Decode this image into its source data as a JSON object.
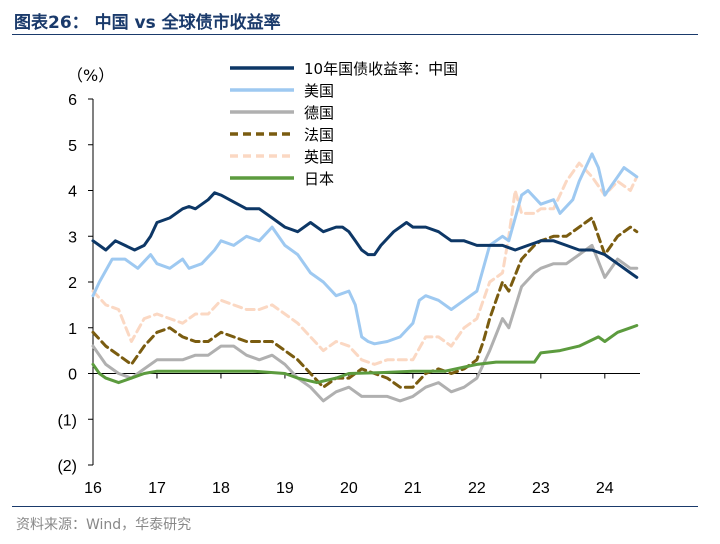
{
  "header": {
    "title": "图表26： 中国 vs 全球债市收益率"
  },
  "footer": {
    "source": "资料来源：Wind，华泰研究"
  },
  "chart_data": {
    "type": "line",
    "unit": "（%）",
    "ylim": [
      -2,
      6
    ],
    "yticks": [
      -2,
      -1,
      0,
      1,
      2,
      3,
      4,
      5,
      6
    ],
    "ytick_labels": [
      "(2)",
      "(1)",
      "0",
      "1",
      "2",
      "3",
      "4",
      "5",
      "6"
    ],
    "xlim": [
      2016.0,
      2024.55
    ],
    "xticks": [
      2016,
      2017,
      2018,
      2019,
      2020,
      2021,
      2022,
      2023,
      2024
    ],
    "xtick_labels": [
      "16",
      "17",
      "18",
      "19",
      "20",
      "21",
      "22",
      "23",
      "24"
    ],
    "legend_position": "top-center",
    "series": [
      {
        "name": "10年国债收益率：中国",
        "color": "#0d3766",
        "dash": "",
        "width": 3,
        "x": [
          2016.0,
          2016.1,
          2016.2,
          2016.35,
          2016.5,
          2016.65,
          2016.8,
          2016.9,
          2017.0,
          2017.2,
          2017.4,
          2017.5,
          2017.6,
          2017.8,
          2017.9,
          2018.0,
          2018.2,
          2018.4,
          2018.6,
          2018.8,
          2019.0,
          2019.2,
          2019.4,
          2019.6,
          2019.8,
          2019.9,
          2020.0,
          2020.1,
          2020.2,
          2020.3,
          2020.4,
          2020.5,
          2020.7,
          2020.9,
          2021.0,
          2021.2,
          2021.4,
          2021.6,
          2021.8,
          2022.0,
          2022.2,
          2022.4,
          2022.6,
          2022.8,
          2022.9,
          2023.0,
          2023.2,
          2023.4,
          2023.6,
          2023.8,
          2024.0,
          2024.2,
          2024.4,
          2024.5
        ],
        "y": [
          2.9,
          2.8,
          2.7,
          2.9,
          2.8,
          2.7,
          2.8,
          3.0,
          3.3,
          3.4,
          3.6,
          3.65,
          3.6,
          3.8,
          3.95,
          3.9,
          3.75,
          3.6,
          3.6,
          3.4,
          3.2,
          3.1,
          3.3,
          3.1,
          3.2,
          3.2,
          3.1,
          2.9,
          2.7,
          2.6,
          2.6,
          2.8,
          3.1,
          3.3,
          3.2,
          3.2,
          3.1,
          2.9,
          2.9,
          2.8,
          2.8,
          2.8,
          2.7,
          2.8,
          2.85,
          2.9,
          2.9,
          2.8,
          2.7,
          2.7,
          2.6,
          2.4,
          2.2,
          2.1
        ]
      },
      {
        "name": "美国",
        "color": "#9ec9f1",
        "dash": "",
        "width": 3,
        "x": [
          2016.0,
          2016.1,
          2016.3,
          2016.5,
          2016.7,
          2016.9,
          2017.0,
          2017.2,
          2017.4,
          2017.5,
          2017.7,
          2017.9,
          2018.0,
          2018.2,
          2018.4,
          2018.6,
          2018.8,
          2019.0,
          2019.2,
          2019.4,
          2019.6,
          2019.8,
          2020.0,
          2020.1,
          2020.2,
          2020.3,
          2020.4,
          2020.6,
          2020.8,
          2021.0,
          2021.1,
          2021.2,
          2021.4,
          2021.6,
          2021.8,
          2022.0,
          2022.2,
          2022.4,
          2022.5,
          2022.7,
          2022.8,
          2023.0,
          2023.2,
          2023.3,
          2023.5,
          2023.6,
          2023.8,
          2023.9,
          2024.0,
          2024.2,
          2024.3,
          2024.4,
          2024.5
        ],
        "y": [
          1.7,
          2.0,
          2.5,
          2.5,
          2.3,
          2.6,
          2.4,
          2.3,
          2.5,
          2.3,
          2.4,
          2.7,
          2.9,
          2.8,
          3.0,
          2.9,
          3.2,
          2.8,
          2.6,
          2.2,
          2.0,
          1.7,
          1.8,
          1.5,
          0.8,
          0.7,
          0.65,
          0.7,
          0.8,
          1.1,
          1.6,
          1.7,
          1.6,
          1.4,
          1.6,
          1.8,
          2.8,
          3.0,
          2.9,
          3.9,
          4.0,
          3.7,
          3.8,
          3.5,
          3.8,
          4.2,
          4.8,
          4.5,
          3.9,
          4.3,
          4.5,
          4.4,
          4.3
        ]
      },
      {
        "name": "德国",
        "color": "#b0b0b0",
        "dash": "",
        "width": 3,
        "x": [
          2016.0,
          2016.2,
          2016.4,
          2016.6,
          2016.8,
          2017.0,
          2017.2,
          2017.4,
          2017.6,
          2017.8,
          2018.0,
          2018.2,
          2018.4,
          2018.6,
          2018.8,
          2019.0,
          2019.2,
          2019.4,
          2019.6,
          2019.8,
          2020.0,
          2020.2,
          2020.4,
          2020.6,
          2020.8,
          2021.0,
          2021.2,
          2021.4,
          2021.6,
          2021.8,
          2022.0,
          2022.1,
          2022.2,
          2022.4,
          2022.5,
          2022.7,
          2022.9,
          2023.0,
          2023.2,
          2023.4,
          2023.6,
          2023.8,
          2024.0,
          2024.2,
          2024.4,
          2024.5
        ],
        "y": [
          0.6,
          0.2,
          0.0,
          -0.1,
          0.1,
          0.3,
          0.3,
          0.3,
          0.4,
          0.4,
          0.6,
          0.6,
          0.4,
          0.3,
          0.4,
          0.2,
          -0.1,
          -0.3,
          -0.6,
          -0.4,
          -0.3,
          -0.5,
          -0.5,
          -0.5,
          -0.6,
          -0.5,
          -0.3,
          -0.2,
          -0.4,
          -0.3,
          -0.1,
          0.2,
          0.5,
          1.2,
          1.0,
          1.9,
          2.2,
          2.3,
          2.4,
          2.4,
          2.6,
          2.8,
          2.1,
          2.5,
          2.3,
          2.3
        ]
      },
      {
        "name": "法国",
        "color": "#7a5c10",
        "dash": "8,5",
        "width": 3,
        "x": [
          2016.0,
          2016.2,
          2016.4,
          2016.6,
          2016.8,
          2017.0,
          2017.2,
          2017.4,
          2017.6,
          2017.8,
          2018.0,
          2018.2,
          2018.4,
          2018.6,
          2018.8,
          2019.0,
          2019.2,
          2019.4,
          2019.6,
          2019.8,
          2020.0,
          2020.2,
          2020.4,
          2020.6,
          2020.8,
          2021.0,
          2021.2,
          2021.4,
          2021.6,
          2021.8,
          2022.0,
          2022.1,
          2022.2,
          2022.4,
          2022.5,
          2022.7,
          2022.9,
          2023.0,
          2023.2,
          2023.4,
          2023.6,
          2023.8,
          2024.0,
          2024.2,
          2024.4,
          2024.5
        ],
        "y": [
          0.9,
          0.6,
          0.4,
          0.2,
          0.6,
          0.9,
          1.0,
          0.8,
          0.7,
          0.7,
          0.9,
          0.8,
          0.7,
          0.7,
          0.7,
          0.5,
          0.3,
          0.0,
          -0.3,
          -0.1,
          -0.1,
          0.1,
          0.0,
          -0.1,
          -0.3,
          -0.3,
          0.0,
          0.1,
          0.0,
          0.1,
          0.3,
          0.7,
          1.2,
          2.0,
          1.8,
          2.5,
          2.8,
          2.9,
          3.0,
          3.0,
          3.2,
          3.4,
          2.6,
          3.0,
          3.2,
          3.1
        ]
      },
      {
        "name": "英国",
        "color": "#fbd8c3",
        "dash": "8,5",
        "width": 3,
        "x": [
          2016.0,
          2016.2,
          2016.4,
          2016.6,
          2016.8,
          2017.0,
          2017.2,
          2017.4,
          2017.6,
          2017.8,
          2018.0,
          2018.2,
          2018.4,
          2018.6,
          2018.8,
          2019.0,
          2019.2,
          2019.4,
          2019.6,
          2019.8,
          2020.0,
          2020.2,
          2020.4,
          2020.6,
          2020.8,
          2021.0,
          2021.2,
          2021.4,
          2021.6,
          2021.8,
          2022.0,
          2022.1,
          2022.2,
          2022.4,
          2022.5,
          2022.6,
          2022.7,
          2022.9,
          2023.0,
          2023.2,
          2023.4,
          2023.6,
          2023.8,
          2024.0,
          2024.2,
          2024.4,
          2024.5
        ],
        "y": [
          1.8,
          1.5,
          1.4,
          0.7,
          1.2,
          1.3,
          1.2,
          1.1,
          1.3,
          1.3,
          1.6,
          1.5,
          1.4,
          1.4,
          1.5,
          1.3,
          1.1,
          0.8,
          0.5,
          0.7,
          0.6,
          0.3,
          0.2,
          0.3,
          0.3,
          0.3,
          0.8,
          0.8,
          0.6,
          1.0,
          1.2,
          1.6,
          2.0,
          2.2,
          3.0,
          4.0,
          3.5,
          3.5,
          3.6,
          3.6,
          4.2,
          4.6,
          4.3,
          3.9,
          4.2,
          4.0,
          4.3
        ]
      },
      {
        "name": "日本",
        "color": "#5c9b3e",
        "dash": "",
        "width": 3,
        "x": [
          2016.0,
          2016.1,
          2016.2,
          2016.4,
          2016.6,
          2016.8,
          2017.0,
          2017.5,
          2018.0,
          2018.5,
          2019.0,
          2019.2,
          2019.5,
          2019.8,
          2020.0,
          2020.5,
          2021.0,
          2021.5,
          2022.0,
          2022.3,
          2022.6,
          2022.9,
          2023.0,
          2023.3,
          2023.6,
          2023.9,
          2024.0,
          2024.2,
          2024.4,
          2024.5
        ],
        "y": [
          0.2,
          0.0,
          -0.1,
          -0.2,
          -0.1,
          0.0,
          0.05,
          0.05,
          0.05,
          0.05,
          0.0,
          -0.1,
          -0.2,
          -0.1,
          0.0,
          0.02,
          0.05,
          0.05,
          0.2,
          0.25,
          0.25,
          0.25,
          0.45,
          0.5,
          0.6,
          0.8,
          0.7,
          0.9,
          1.0,
          1.05
        ]
      }
    ]
  }
}
